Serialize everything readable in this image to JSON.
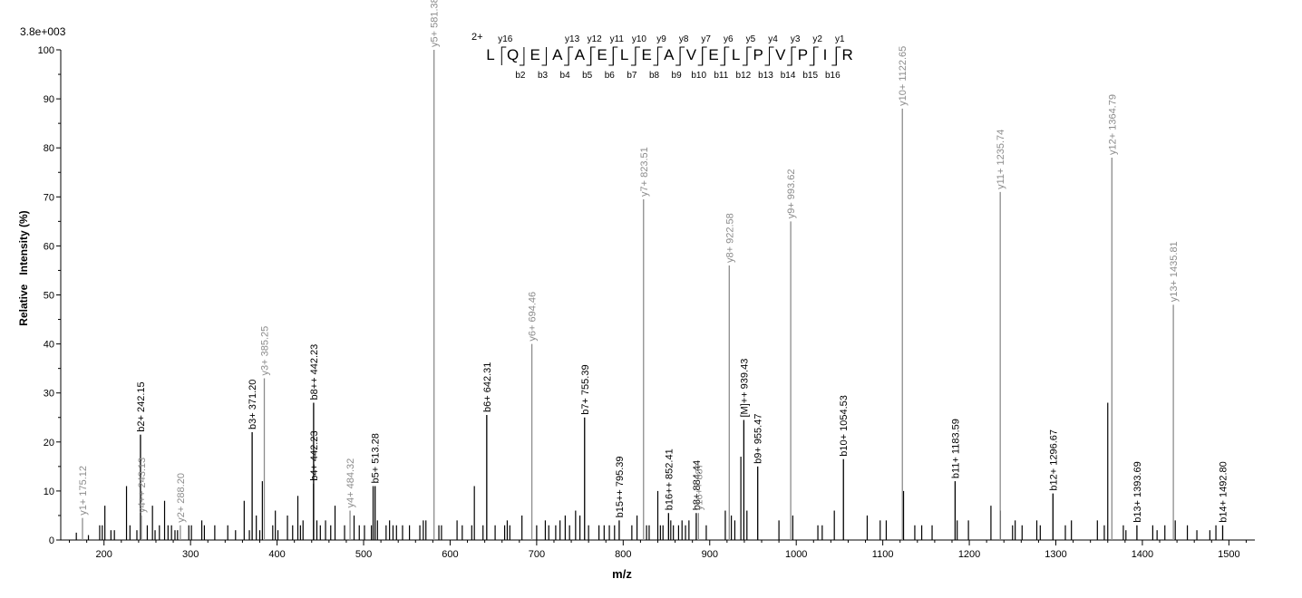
{
  "chart_data": {
    "type": "bar",
    "title": "",
    "scale_label": "3.8e+003",
    "xlabel": "m/z",
    "ylabel": "Relative   Intensity (%)",
    "xlim": [
      150,
      1530
    ],
    "ylim": [
      0,
      100
    ],
    "x_ticks": [
      200,
      300,
      400,
      500,
      600,
      700,
      800,
      900,
      1000,
      1100,
      1200,
      1300,
      1400,
      1500
    ],
    "x_minor_step": 20,
    "y_ticks": [
      0,
      10,
      20,
      30,
      40,
      50,
      60,
      70,
      80,
      90,
      100
    ],
    "grid": false,
    "colors": {
      "b_ion": "#000000",
      "y_ion": "#8c8c8c",
      "noise": "#000000"
    },
    "peptide": {
      "charge_label": "2+",
      "sequence": [
        "L",
        "Q",
        "E",
        "A",
        "A",
        "E",
        "L",
        "E",
        "A",
        "V",
        "E",
        "L",
        "P",
        "V",
        "P",
        "I",
        "R"
      ],
      "b_labels": [
        "b2",
        "b3",
        "b4",
        "b5",
        "b6",
        "b7",
        "b8",
        "b9",
        "b10",
        "b11",
        "b12",
        "b13",
        "b14",
        "b15",
        "b16"
      ],
      "y_labels": [
        "y16",
        "y13",
        "y12",
        "y11",
        "y10",
        "y9",
        "y8",
        "y7",
        "y6",
        "y5",
        "y4",
        "y3",
        "y2",
        "y1"
      ]
    },
    "annotated_peaks": [
      {
        "mz": 175.12,
        "intensity": 4.5,
        "label": "y1+ 175.12",
        "series": "y"
      },
      {
        "mz": 242.15,
        "intensity": 21.5,
        "label": "b2+ 242.15",
        "series": "b"
      },
      {
        "mz": 243.13,
        "intensity": 5,
        "label": "y4++ 243.13",
        "series": "y"
      },
      {
        "mz": 288.2,
        "intensity": 3,
        "label": "y2+ 288.20",
        "series": "y"
      },
      {
        "mz": 371.2,
        "intensity": 22,
        "label": "b3+ 371.20",
        "series": "b"
      },
      {
        "mz": 385.25,
        "intensity": 33,
        "label": "y3+ 385.25",
        "series": "y"
      },
      {
        "mz": 442.23,
        "intensity": 11.5,
        "label": "b4+ 442.23",
        "series": "b"
      },
      {
        "mz": 442.23,
        "intensity": 28,
        "label": "b8++ 442.23",
        "series": "b"
      },
      {
        "mz": 484.32,
        "intensity": 6,
        "label": "y4+ 484.32",
        "series": "y"
      },
      {
        "mz": 513.28,
        "intensity": 11,
        "label": "b5+ 513.28",
        "series": "b"
      },
      {
        "mz": 581.38,
        "intensity": 100,
        "label": "y5+ 581.38",
        "series": "y"
      },
      {
        "mz": 642.31,
        "intensity": 25.5,
        "label": "b6+ 642.31",
        "series": "b"
      },
      {
        "mz": 694.46,
        "intensity": 40,
        "label": "y6+ 694.46",
        "series": "y"
      },
      {
        "mz": 755.39,
        "intensity": 25,
        "label": "b7+ 755.39",
        "series": "b"
      },
      {
        "mz": 795.39,
        "intensity": 4,
        "label": "b15++ 795.39",
        "series": "b"
      },
      {
        "mz": 823.51,
        "intensity": 69.5,
        "label": "y7+ 823.51",
        "series": "y"
      },
      {
        "mz": 852.41,
        "intensity": 5.5,
        "label": "b16++ 852.41",
        "series": "b"
      },
      {
        "mz": 884.44,
        "intensity": 5.5,
        "label": "b8+ 884.44",
        "series": "b"
      },
      {
        "mz": 887.0,
        "intensity": 5.5,
        "label": "y16++ 887",
        "series": "y"
      },
      {
        "mz": 922.58,
        "intensity": 56,
        "label": "y8+ 922.58",
        "series": "y"
      },
      {
        "mz": 939.43,
        "intensity": 24.5,
        "label": "[M]++ 939.43",
        "series": "b"
      },
      {
        "mz": 955.47,
        "intensity": 15,
        "label": "b9+ 955.47",
        "series": "b"
      },
      {
        "mz": 993.62,
        "intensity": 65,
        "label": "y9+ 993.62",
        "series": "y"
      },
      {
        "mz": 1054.53,
        "intensity": 16.5,
        "label": "b10+ 1054.53",
        "series": "b"
      },
      {
        "mz": 1122.65,
        "intensity": 88,
        "label": "y10+ 1122.65",
        "series": "y"
      },
      {
        "mz": 1183.59,
        "intensity": 12,
        "label": "b11+ 1183.59",
        "series": "b"
      },
      {
        "mz": 1235.74,
        "intensity": 71,
        "label": "y11+ 1235.74",
        "series": "y"
      },
      {
        "mz": 1296.67,
        "intensity": 9.5,
        "label": "b12+ 1296.67",
        "series": "b"
      },
      {
        "mz": 1364.79,
        "intensity": 78,
        "label": "y12+ 1364.79",
        "series": "y"
      },
      {
        "mz": 1393.69,
        "intensity": 3,
        "label": "b13+ 1393.69",
        "series": "b"
      },
      {
        "mz": 1435.81,
        "intensity": 48,
        "label": "y13+ 1435.81",
        "series": "y"
      },
      {
        "mz": 1492.8,
        "intensity": 3,
        "label": "b14+ 1492.80",
        "series": "b"
      }
    ],
    "unlabeled_peaks": {
      "mz": [
        168,
        182,
        195,
        198,
        201,
        208,
        212,
        226,
        230,
        238,
        250,
        256,
        259,
        264,
        270,
        274,
        278,
        282,
        285,
        298,
        301,
        313,
        316,
        328,
        343,
        352,
        362,
        368,
        376,
        380,
        383,
        395,
        398,
        401,
        412,
        418,
        424,
        427,
        430,
        446,
        450,
        456,
        462,
        467,
        478,
        489,
        495,
        501,
        509,
        511,
        516,
        526,
        530,
        534,
        538,
        545,
        553,
        565,
        569,
        572,
        587,
        590,
        608,
        614,
        625,
        628,
        638,
        652,
        663,
        666,
        669,
        683,
        700,
        710,
        714,
        722,
        727,
        733,
        738,
        745,
        750,
        760,
        772,
        778,
        784,
        790,
        810,
        816,
        827,
        830,
        840,
        843,
        846,
        855,
        858,
        864,
        868,
        872,
        876,
        896,
        918,
        925,
        929,
        936,
        943,
        980,
        996,
        1025,
        1030,
        1044,
        1082,
        1097,
        1104,
        1124,
        1137,
        1145,
        1157,
        1186,
        1199,
        1225,
        1236,
        1250,
        1253,
        1261,
        1278,
        1282,
        1311,
        1318,
        1348,
        1356,
        1360,
        1378,
        1381,
        1412,
        1417,
        1426,
        1438,
        1452,
        1463,
        1478,
        1485
      ],
      "intensity": [
        1.5,
        1,
        3,
        3,
        7,
        2,
        2,
        11,
        3,
        2,
        3,
        7,
        2,
        3,
        8,
        3,
        3,
        2,
        2,
        3,
        3,
        4,
        3,
        3,
        3,
        2,
        8,
        2,
        5,
        2,
        12,
        3,
        6,
        2,
        5,
        3,
        9,
        3,
        4,
        4,
        3,
        4,
        3,
        7,
        3,
        5,
        3,
        3,
        3,
        11,
        4,
        3,
        4,
        3,
        3,
        3,
        3,
        3,
        4,
        4,
        3,
        3,
        4,
        3,
        3,
        11,
        3,
        3,
        3,
        4,
        3,
        5,
        3,
        4,
        3,
        3,
        4,
        5,
        3,
        6,
        5,
        3,
        3,
        3,
        3,
        3,
        3,
        5,
        3,
        3,
        10,
        3,
        3,
        4,
        3,
        3,
        4,
        3,
        4,
        3,
        6,
        5,
        4,
        17,
        6,
        4,
        5,
        3,
        3,
        6,
        5,
        4,
        4,
        10,
        3,
        3,
        3,
        4,
        4,
        7,
        6,
        3,
        4,
        3,
        4,
        3,
        3,
        4,
        4,
        3,
        28,
        3,
        2,
        3,
        2,
        3,
        4,
        3,
        2,
        2,
        3
      ]
    }
  }
}
